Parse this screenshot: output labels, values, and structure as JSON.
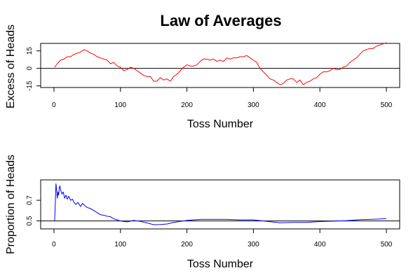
{
  "chart_data": [
    {
      "type": "line",
      "title": "Law of Averages",
      "xlabel": "Toss Number",
      "ylabel": "Excess of Heads",
      "xlim": [
        0,
        500
      ],
      "ylim": [
        -15,
        20
      ],
      "xticks": [
        0,
        100,
        200,
        300,
        400,
        500
      ],
      "xtick_labels": [
        "0",
        "100",
        "200",
        "300",
        "400",
        "500"
      ],
      "yticks": [
        -15,
        0,
        15
      ],
      "ytick_labels": [
        "-15",
        "0",
        "15"
      ],
      "reference_line": 0,
      "grid": false,
      "legend": "none",
      "series": [
        {
          "color": "#ff0000",
          "x": [
            1,
            5,
            10,
            15,
            20,
            25,
            30,
            35,
            40,
            45,
            50,
            55,
            60,
            65,
            70,
            75,
            80,
            85,
            90,
            95,
            100,
            105,
            110,
            115,
            120,
            125,
            130,
            135,
            140,
            145,
            150,
            155,
            160,
            165,
            170,
            175,
            180,
            185,
            190,
            195,
            200,
            205,
            210,
            215,
            220,
            225,
            230,
            235,
            240,
            245,
            250,
            255,
            260,
            265,
            270,
            275,
            280,
            285,
            290,
            295,
            300,
            305,
            310,
            315,
            320,
            325,
            330,
            335,
            340,
            345,
            350,
            355,
            360,
            365,
            370,
            375,
            380,
            385,
            390,
            395,
            400,
            405,
            410,
            415,
            420,
            425,
            430,
            435,
            440,
            445,
            450,
            455,
            460,
            465,
            470,
            475,
            480,
            485,
            490,
            495,
            500
          ],
          "values": [
            1,
            4,
            7,
            8,
            10,
            10,
            12,
            13,
            14,
            16,
            15,
            13,
            12,
            10,
            9,
            8,
            7,
            4,
            5,
            2,
            1,
            -2,
            -1,
            1,
            0,
            -2,
            -4,
            -6,
            -7,
            -7,
            -11,
            -11,
            -8,
            -10,
            -9,
            -11,
            -7,
            -5,
            -2,
            1,
            3,
            2,
            2,
            3,
            6,
            8,
            8,
            7,
            8,
            6,
            7,
            6,
            9,
            8,
            9,
            9,
            10,
            10,
            11,
            9,
            7,
            5,
            0,
            -3,
            -6,
            -9,
            -10,
            -12,
            -14,
            -13,
            -10,
            -9,
            -9,
            -12,
            -10,
            -14,
            -12,
            -11,
            -9,
            -8,
            -5,
            -3,
            -3,
            -2,
            0,
            -1,
            -1,
            1,
            2,
            5,
            7,
            9,
            12,
            15,
            16,
            17,
            17,
            19,
            20,
            21,
            22
          ]
        }
      ]
    },
    {
      "type": "line",
      "title": "",
      "xlabel": "Toss Number",
      "ylabel": "Proportion of Heads",
      "xlim": [
        0,
        500
      ],
      "ylim": [
        0.44,
        0.88
      ],
      "xticks": [
        0,
        100,
        200,
        300,
        400,
        500
      ],
      "xtick_labels": [
        "0",
        "100",
        "200",
        "300",
        "400",
        "500"
      ],
      "yticks": [
        0.5,
        0.7
      ],
      "ytick_labels": [
        "0.5",
        "0.7"
      ],
      "reference_line": 0.5,
      "grid": false,
      "legend": "none",
      "series": [
        {
          "color": "#0000ff",
          "x": [
            1,
            2,
            3,
            4,
            5,
            6,
            7,
            8,
            9,
            10,
            12,
            14,
            16,
            18,
            20,
            22,
            25,
            28,
            30,
            33,
            36,
            40,
            43,
            46,
            50,
            55,
            60,
            65,
            70,
            75,
            80,
            85,
            90,
            95,
            100,
            110,
            120,
            130,
            140,
            150,
            160,
            170,
            180,
            190,
            200,
            220,
            240,
            260,
            280,
            300,
            320,
            340,
            360,
            380,
            400,
            420,
            440,
            460,
            480,
            500
          ],
          "values": [
            0.5,
            0.67,
            0.86,
            0.8,
            0.72,
            0.78,
            0.75,
            0.82,
            0.84,
            0.8,
            0.76,
            0.78,
            0.72,
            0.75,
            0.71,
            0.74,
            0.7,
            0.71,
            0.68,
            0.66,
            0.68,
            0.64,
            0.67,
            0.65,
            0.63,
            0.62,
            0.6,
            0.58,
            0.56,
            0.555,
            0.545,
            0.54,
            0.52,
            0.51,
            0.5,
            0.49,
            0.505,
            0.495,
            0.48,
            0.463,
            0.465,
            0.47,
            0.485,
            0.495,
            0.505,
            0.515,
            0.515,
            0.515,
            0.51,
            0.51,
            0.496,
            0.482,
            0.485,
            0.485,
            0.494,
            0.498,
            0.502,
            0.512,
            0.516,
            0.522
          ]
        }
      ]
    }
  ]
}
